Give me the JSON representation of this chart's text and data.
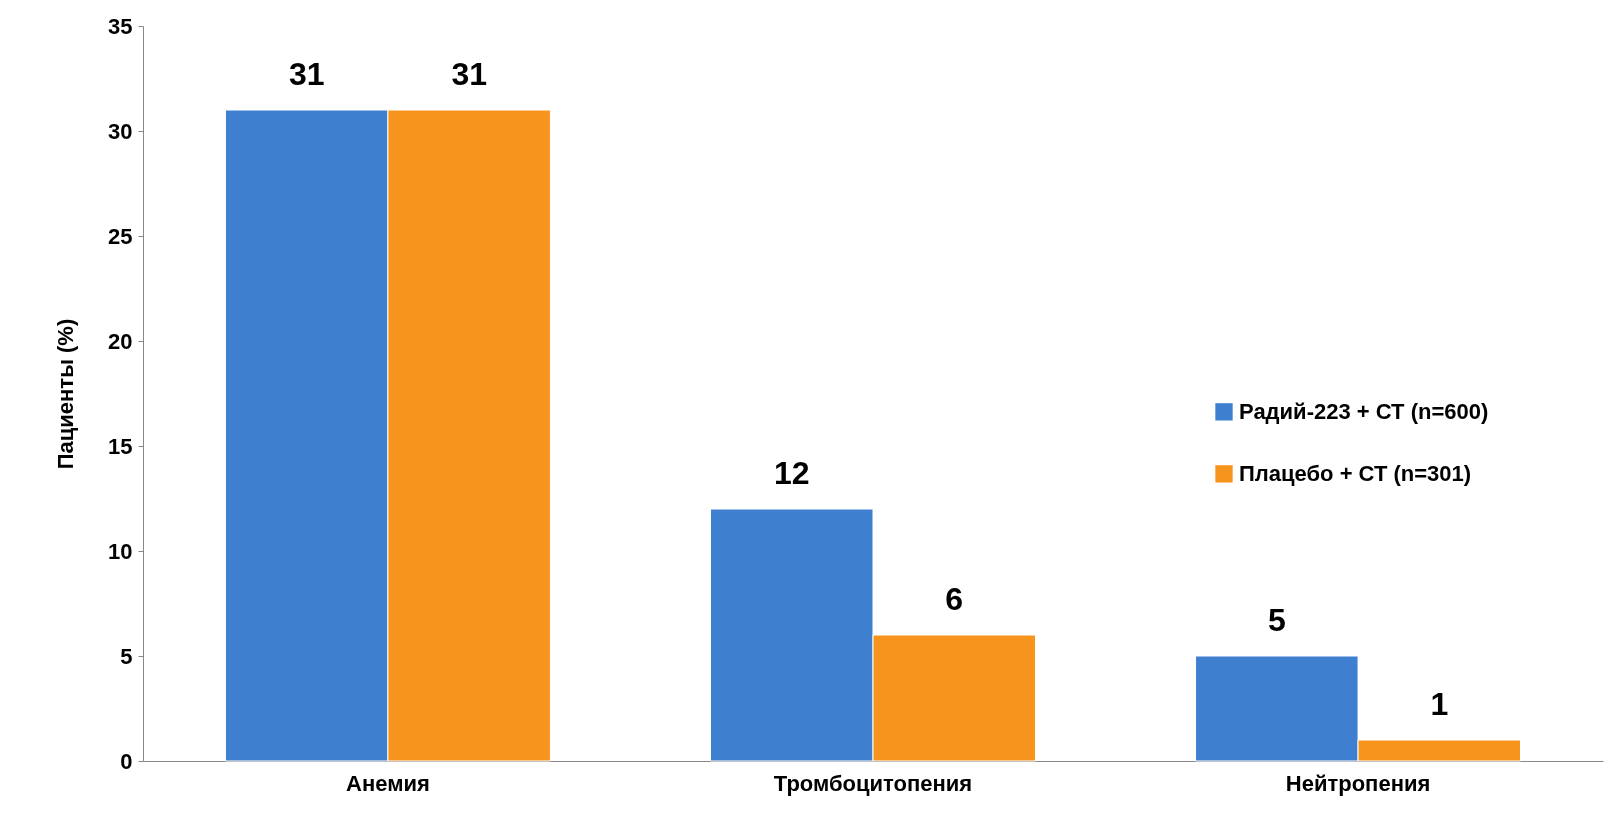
{
  "chart_data": {
    "type": "bar",
    "ylabel": "Пациенты (%)",
    "categories": [
      "Анемия",
      "Тромбоцитопения",
      "Нейтропения"
    ],
    "series": [
      {
        "name": "Радий-223 + СТ (n=600)",
        "color": "#3f7fd0",
        "values": [
          31,
          12,
          5
        ]
      },
      {
        "name": "Плацебо + СТ (n=301)",
        "color": "#f7941d",
        "values": [
          31,
          6,
          1
        ]
      }
    ],
    "ylim": [
      0,
      35
    ],
    "yticks": [
      0,
      5,
      10,
      15,
      20,
      25,
      30,
      35
    ],
    "data_labels": true,
    "grid": false,
    "legend": "right"
  }
}
